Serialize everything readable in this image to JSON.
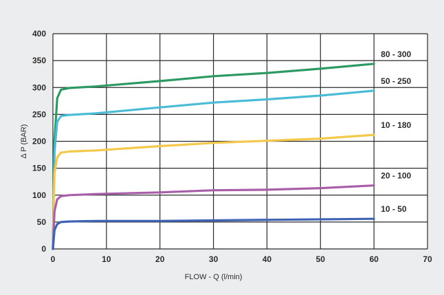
{
  "chart_data": {
    "type": "line",
    "xlabel": "FLOW - Q (l/min)",
    "ylabel": "Δ P (BAR)",
    "xlim": [
      0,
      70
    ],
    "ylim": [
      0,
      400
    ],
    "x_ticks": [
      "0",
      "10",
      "20",
      "30",
      "40",
      "50",
      "60",
      "70"
    ],
    "y_ticks": [
      "0",
      "50",
      "100",
      "150",
      "200",
      "250",
      "300",
      "350",
      "400"
    ],
    "grid": true,
    "legend": "right, inline labels",
    "series": [
      {
        "name": "80 - 300",
        "color": "#2e9a63",
        "points": [
          [
            0,
            0
          ],
          [
            0.3,
            200
          ],
          [
            0.8,
            280
          ],
          [
            1.5,
            296
          ],
          [
            3,
            299
          ],
          [
            8,
            302
          ],
          [
            20,
            312
          ],
          [
            30,
            321
          ],
          [
            40,
            327
          ],
          [
            50,
            335
          ],
          [
            60,
            344
          ]
        ]
      },
      {
        "name": "50 - 250",
        "color": "#4bbcd6",
        "points": [
          [
            0,
            0
          ],
          [
            0.3,
            180
          ],
          [
            0.8,
            236
          ],
          [
            1.5,
            247
          ],
          [
            3,
            249
          ],
          [
            8,
            252
          ],
          [
            20,
            263
          ],
          [
            30,
            272
          ],
          [
            40,
            278
          ],
          [
            50,
            285
          ],
          [
            60,
            294
          ]
        ]
      },
      {
        "name": "10 - 180",
        "color": "#f4c84a",
        "points": [
          [
            0,
            0
          ],
          [
            0.3,
            140
          ],
          [
            0.8,
            170
          ],
          [
            1.5,
            179
          ],
          [
            3,
            181
          ],
          [
            8,
            183
          ],
          [
            20,
            191
          ],
          [
            30,
            197
          ],
          [
            40,
            201
          ],
          [
            50,
            205
          ],
          [
            60,
            212
          ]
        ]
      },
      {
        "name": "20 - 100",
        "color": "#a85fa8",
        "points": [
          [
            0,
            0
          ],
          [
            0.3,
            70
          ],
          [
            0.8,
            92
          ],
          [
            1.5,
            98
          ],
          [
            3,
            100
          ],
          [
            8,
            102
          ],
          [
            20,
            105
          ],
          [
            30,
            109
          ],
          [
            40,
            110
          ],
          [
            50,
            113
          ],
          [
            60,
            118
          ]
        ]
      },
      {
        "name": "10 - 50",
        "color": "#3e63b4",
        "points": [
          [
            0,
            0
          ],
          [
            0.3,
            35
          ],
          [
            0.8,
            46
          ],
          [
            1.5,
            50
          ],
          [
            3,
            51
          ],
          [
            8,
            52
          ],
          [
            20,
            52
          ],
          [
            30,
            53
          ],
          [
            40,
            54
          ],
          [
            50,
            55
          ],
          [
            60,
            56
          ]
        ]
      }
    ]
  },
  "colors": {
    "background": "#ecedee",
    "plot_area": "#ffffff",
    "grid": "#2a2a2a"
  }
}
